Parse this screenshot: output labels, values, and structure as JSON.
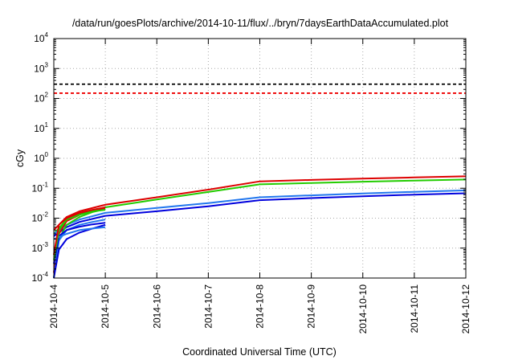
{
  "chart_data": {
    "type": "line",
    "title": "/data/run/goesPlots/archive/2014-10-11/flux/../bryn/7daysEarthDataAccumulated.plot",
    "xlabel": "Coordinated Universal Time (UTC)",
    "ylabel": "cGy",
    "y_scale": "log",
    "ylim": [
      0.0001,
      10000
    ],
    "y_ticks": [
      {
        "base": "10",
        "exp": "-4",
        "value": 0.0001
      },
      {
        "base": "10",
        "exp": "-3",
        "value": 0.001
      },
      {
        "base": "10",
        "exp": "-2",
        "value": 0.01
      },
      {
        "base": "10",
        "exp": "-1",
        "value": 0.1
      },
      {
        "base": "10",
        "exp": "0",
        "value": 1
      },
      {
        "base": "10",
        "exp": "1",
        "value": 10
      },
      {
        "base": "10",
        "exp": "2",
        "value": 100
      },
      {
        "base": "10",
        "exp": "3",
        "value": 1000
      },
      {
        "base": "10",
        "exp": "4",
        "value": 10000
      }
    ],
    "x_ticks": [
      "2014-10-4",
      "2014-10-5",
      "2014-10-6",
      "2014-10-7",
      "2014-10-8",
      "2014-10-9",
      "2014-10-10",
      "2014-10-11",
      "2014-10-12"
    ],
    "xlim": [
      "2014-10-4",
      "2014-10-12"
    ],
    "grid": true,
    "thresholds": [
      {
        "value": 300,
        "color": "#000000",
        "style": "dashed"
      },
      {
        "value": 150,
        "color": "#ee0000",
        "style": "dashed"
      }
    ],
    "series": [
      {
        "color": "#dd0000",
        "points": [
          [
            "2014-10-4",
            0.004
          ],
          [
            "2014-10-4 06:00",
            0.011
          ],
          [
            "2014-10-4 12:00",
            0.017
          ],
          [
            "2014-10-5",
            0.028
          ],
          [
            "2014-10-6",
            0.05
          ],
          [
            "2014-10-7",
            0.09
          ],
          [
            "2014-10-8",
            0.17
          ],
          [
            "2014-10-9",
            0.19
          ],
          [
            "2014-10-10",
            0.21
          ],
          [
            "2014-10-11",
            0.23
          ],
          [
            "2014-10-12",
            0.25
          ]
        ]
      },
      {
        "color": "#22cc00",
        "points": [
          [
            "2014-10-4",
            0.003
          ],
          [
            "2014-10-4 06:00",
            0.009
          ],
          [
            "2014-10-4 12:00",
            0.014
          ],
          [
            "2014-10-5",
            0.023
          ],
          [
            "2014-10-6",
            0.042
          ],
          [
            "2014-10-7",
            0.075
          ],
          [
            "2014-10-8",
            0.135
          ],
          [
            "2014-10-9",
            0.15
          ],
          [
            "2014-10-10",
            0.165
          ],
          [
            "2014-10-11",
            0.18
          ],
          [
            "2014-10-12",
            0.195
          ]
        ]
      },
      {
        "color": "#2277ee",
        "points": [
          [
            "2014-10-4",
            0.003
          ],
          [
            "2014-10-4 06:00",
            0.006
          ],
          [
            "2014-10-4 12:00",
            0.009
          ],
          [
            "2014-10-5",
            0.015
          ],
          [
            "2014-10-6",
            0.022
          ],
          [
            "2014-10-7",
            0.032
          ],
          [
            "2014-10-8",
            0.05
          ],
          [
            "2014-10-9",
            0.058
          ],
          [
            "2014-10-10",
            0.067
          ],
          [
            "2014-10-11",
            0.076
          ],
          [
            "2014-10-12",
            0.085
          ]
        ]
      },
      {
        "color": "#0000dd",
        "points": [
          [
            "2014-10-4",
            0.0025
          ],
          [
            "2014-10-4 06:00",
            0.005
          ],
          [
            "2014-10-4 12:00",
            0.0075
          ],
          [
            "2014-10-5",
            0.012
          ],
          [
            "2014-10-6",
            0.017
          ],
          [
            "2014-10-7",
            0.025
          ],
          [
            "2014-10-8",
            0.04
          ],
          [
            "2014-10-9",
            0.047
          ],
          [
            "2014-10-10",
            0.054
          ],
          [
            "2014-10-11",
            0.061
          ],
          [
            "2014-10-12",
            0.068
          ]
        ]
      },
      {
        "color": "#22cc00",
        "points": [
          [
            "2014-10-4",
            0.0001
          ],
          [
            "2014-10-4 02:24",
            0.002
          ],
          [
            "2014-10-4 06:00",
            0.006
          ],
          [
            "2014-10-4 12:00",
            0.011
          ],
          [
            "2014-10-4 18:00",
            0.016
          ],
          [
            "2014-10-5",
            0.02
          ]
        ]
      },
      {
        "color": "#dd0000",
        "points": [
          [
            "2014-10-4",
            0.00015
          ],
          [
            "2014-10-4 02:24",
            0.003
          ],
          [
            "2014-10-4 06:00",
            0.008
          ],
          [
            "2014-10-4 12:00",
            0.013
          ],
          [
            "2014-10-4 18:00",
            0.018
          ],
          [
            "2014-10-5",
            0.022
          ]
        ]
      },
      {
        "color": "#2277ee",
        "points": [
          [
            "2014-10-4",
            0.0001
          ],
          [
            "2014-10-4 02:24",
            0.0018
          ],
          [
            "2014-10-4 06:00",
            0.004
          ],
          [
            "2014-10-4 12:00",
            0.006
          ],
          [
            "2014-10-4 18:00",
            0.0075
          ],
          [
            "2014-10-5",
            0.009
          ]
        ]
      },
      {
        "color": "#0000dd",
        "points": [
          [
            "2014-10-4",
            0.0001
          ],
          [
            "2014-10-4 02:24",
            0.0009
          ],
          [
            "2014-10-4 06:00",
            0.002
          ],
          [
            "2014-10-4 12:00",
            0.0033
          ],
          [
            "2014-10-4 18:00",
            0.0045
          ],
          [
            "2014-10-5",
            0.006
          ]
        ]
      },
      {
        "color": "#0000dd",
        "points": [
          [
            "2014-10-4",
            0.0003
          ],
          [
            "2014-10-4 02:24",
            0.0025
          ],
          [
            "2014-10-4 06:00",
            0.004
          ],
          [
            "2014-10-4 12:00",
            0.0052
          ],
          [
            "2014-10-4 18:00",
            0.0062
          ],
          [
            "2014-10-5",
            0.007
          ]
        ]
      },
      {
        "color": "#2277ee",
        "points": [
          [
            "2014-10-4",
            0.002
          ],
          [
            "2014-10-4 06:00",
            0.003
          ],
          [
            "2014-10-4 12:00",
            0.004
          ],
          [
            "2014-10-4 18:00",
            0.0045
          ],
          [
            "2014-10-5",
            0.005
          ]
        ]
      },
      {
        "color": "#22cc00",
        "points": [
          [
            "2014-10-4",
            0.0004
          ],
          [
            "2014-10-4 02:24",
            0.004
          ],
          [
            "2014-10-4 06:00",
            0.009
          ],
          [
            "2014-10-4 12:00",
            0.013
          ],
          [
            "2014-10-4 18:00",
            0.017
          ],
          [
            "2014-10-5",
            0.019
          ]
        ]
      },
      {
        "color": "#dd0000",
        "points": [
          [
            "2014-10-4",
            0.0006
          ],
          [
            "2014-10-4 02:24",
            0.006
          ],
          [
            "2014-10-4 06:00",
            0.01
          ],
          [
            "2014-10-4 12:00",
            0.015
          ],
          [
            "2014-10-4 18:00",
            0.019
          ],
          [
            "2014-10-5",
            0.023
          ]
        ]
      }
    ]
  }
}
